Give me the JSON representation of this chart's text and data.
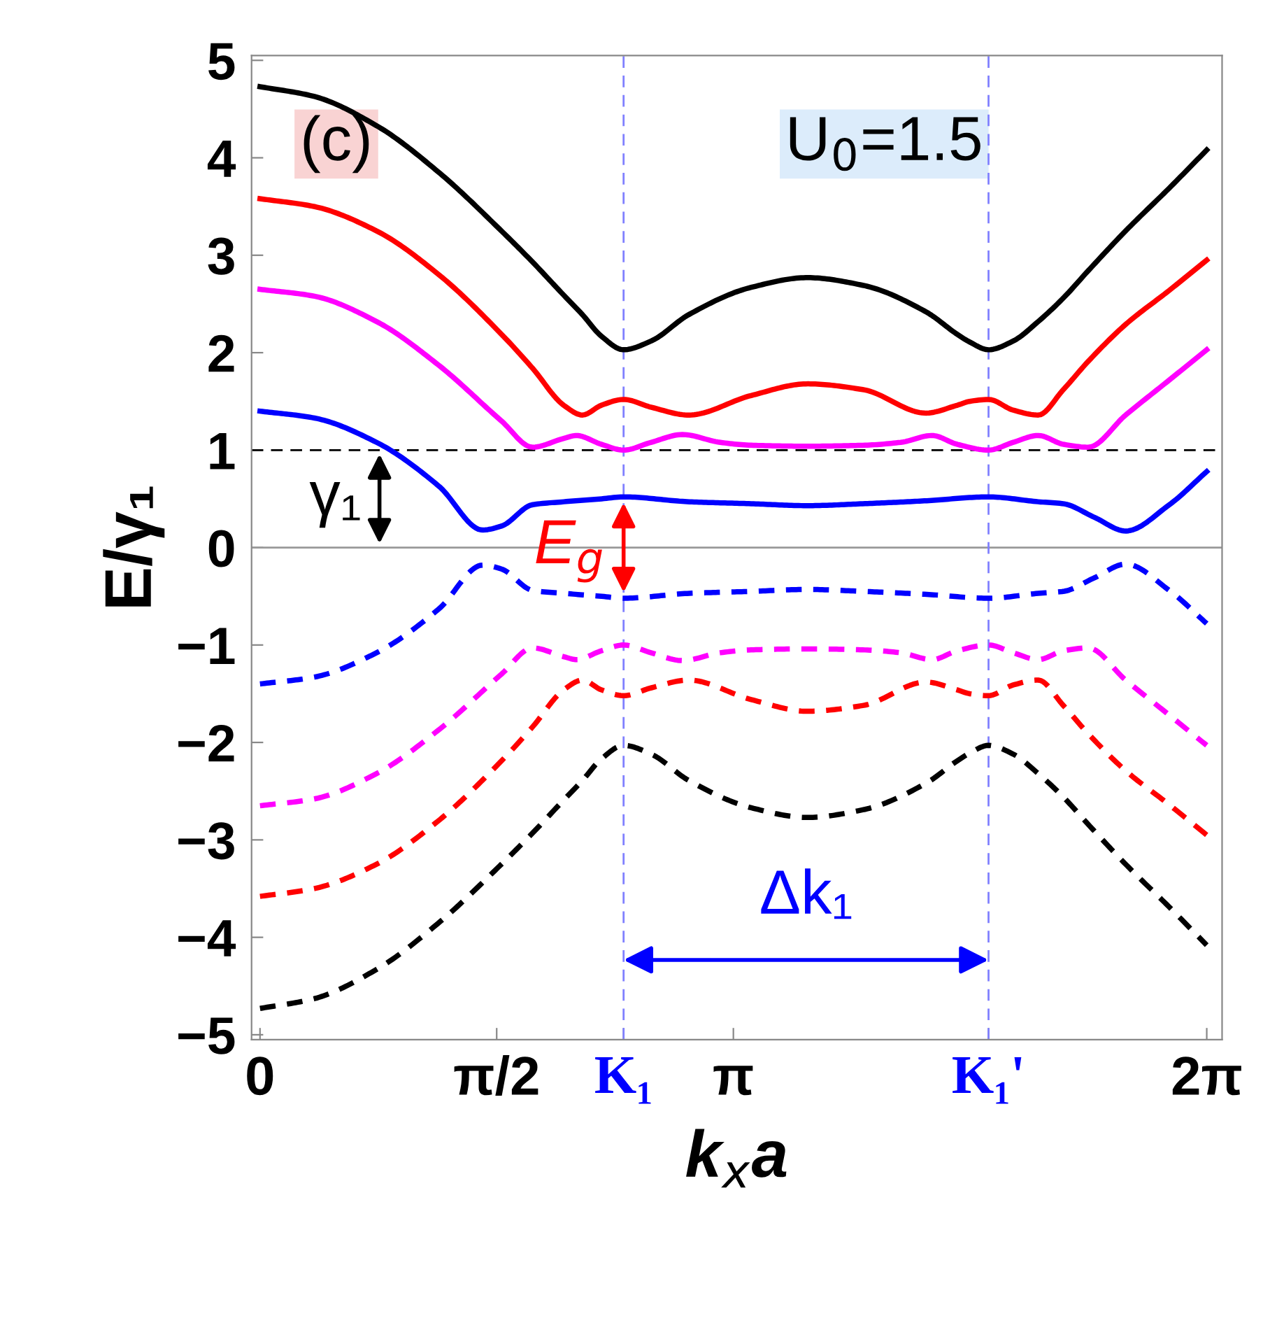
{
  "chart_data": {
    "type": "line",
    "xlabel": "k$_{x}$a",
    "ylabel": "E/γ₁",
    "xlim": [
      -0.056,
      6.385
    ],
    "ylim": [
      -5.05,
      5.05
    ],
    "xticks": [
      {
        "value": 0,
        "label": "0"
      },
      {
        "value": 1.5708,
        "label": "π/2"
      },
      {
        "value": 2.413,
        "label": "K₁"
      },
      {
        "value": 3.1416,
        "label": "π"
      },
      {
        "value": 4.835,
        "label": "K₁'"
      },
      {
        "value": 6.2832,
        "label": "2π"
      }
    ],
    "yticks": [
      {
        "value": -5,
        "label": "−5"
      },
      {
        "value": -4,
        "label": "−4"
      },
      {
        "value": -3,
        "label": "−3"
      },
      {
        "value": -2,
        "label": "−2"
      },
      {
        "value": -1,
        "label": "−1"
      },
      0,
      1,
      2,
      3,
      4,
      5
    ],
    "grid": false,
    "marker": "none",
    "series": [
      {
        "color": "#000000",
        "line_style": "solid",
        "x": [
          0,
          0.359,
          0.773,
          1.187,
          1.602,
          1.809,
          2.016,
          2.14,
          2.265,
          2.413,
          2.596,
          2.845,
          3.259,
          3.632,
          4.005,
          4.419,
          4.626,
          4.709,
          4.835,
          4.999,
          5.165,
          5.331,
          5.496,
          5.745,
          6.035,
          6.283
        ],
        "values": [
          4.73,
          4.63,
          4.33,
          3.85,
          3.25,
          2.93,
          2.59,
          2.39,
          2.17,
          2.03,
          2.12,
          2.39,
          2.67,
          2.77,
          2.69,
          2.42,
          2.19,
          2.11,
          2.03,
          2.12,
          2.32,
          2.56,
          2.84,
          3.25,
          3.69,
          4.08
        ]
      },
      {
        "color": "#ff0000",
        "line_style": "solid",
        "x": [
          0,
          0.359,
          0.773,
          1.187,
          1.602,
          1.809,
          2.016,
          2.14,
          2.265,
          2.413,
          2.596,
          2.845,
          3.259,
          3.632,
          4.005,
          4.419,
          4.626,
          4.709,
          4.835,
          4.999,
          5.165,
          5.331,
          5.496,
          5.745,
          6.035,
          6.283
        ],
        "values": [
          3.58,
          3.5,
          3.25,
          2.8,
          2.19,
          1.84,
          1.46,
          1.36,
          1.46,
          1.52,
          1.44,
          1.36,
          1.56,
          1.68,
          1.62,
          1.38,
          1.46,
          1.5,
          1.52,
          1.41,
          1.36,
          1.62,
          1.91,
          2.29,
          2.64,
          2.95
        ]
      },
      {
        "color": "#ff00ff",
        "line_style": "solid",
        "x": [
          0,
          0.359,
          0.773,
          1.187,
          1.602,
          1.809,
          2.016,
          2.099,
          2.265,
          2.413,
          2.596,
          2.803,
          3.052,
          3.259,
          3.632,
          4.005,
          4.253,
          4.46,
          4.626,
          4.835,
          4.999,
          5.165,
          5.331,
          5.496,
          5.745,
          6.035,
          6.283
        ],
        "values": [
          2.65,
          2.58,
          2.32,
          1.87,
          1.3,
          1.03,
          1.12,
          1.15,
          1.06,
          1.0,
          1.08,
          1.16,
          1.08,
          1.05,
          1.04,
          1.05,
          1.08,
          1.15,
          1.06,
          1.0,
          1.08,
          1.15,
          1.06,
          1.03,
          1.36,
          1.72,
          2.03
        ]
      },
      {
        "color": "#0000ff",
        "line_style": "solid",
        "x": [
          0,
          0.359,
          0.773,
          1.187,
          1.477,
          1.602,
          1.809,
          2.016,
          2.265,
          2.413,
          2.845,
          3.259,
          3.632,
          4.005,
          4.419,
          4.835,
          5.165,
          5.331,
          5.538,
          5.745,
          6.035,
          6.283
        ],
        "values": [
          1.4,
          1.33,
          1.08,
          0.63,
          0.18,
          0.22,
          0.44,
          0.47,
          0.5,
          0.52,
          0.47,
          0.45,
          0.43,
          0.45,
          0.48,
          0.52,
          0.47,
          0.45,
          0.31,
          0.17,
          0.44,
          0.78
        ]
      },
      {
        "color": "#000000",
        "line_style": "dashed",
        "x": [
          0,
          0.359,
          0.773,
          1.187,
          1.602,
          1.809,
          2.016,
          2.14,
          2.265,
          2.413,
          2.596,
          2.845,
          3.259,
          3.632,
          4.005,
          4.419,
          4.626,
          4.709,
          4.835,
          4.999,
          5.165,
          5.331,
          5.496,
          5.745,
          6.035,
          6.283
        ],
        "values": [
          -4.73,
          -4.63,
          -4.33,
          -3.85,
          -3.25,
          -2.93,
          -2.59,
          -2.39,
          -2.17,
          -2.03,
          -2.12,
          -2.39,
          -2.67,
          -2.77,
          -2.69,
          -2.42,
          -2.19,
          -2.11,
          -2.03,
          -2.12,
          -2.32,
          -2.56,
          -2.84,
          -3.25,
          -3.69,
          -4.08
        ]
      },
      {
        "color": "#ff0000",
        "line_style": "dashed",
        "x": [
          0,
          0.359,
          0.773,
          1.187,
          1.602,
          1.809,
          2.016,
          2.14,
          2.265,
          2.413,
          2.596,
          2.845,
          3.259,
          3.632,
          4.005,
          4.419,
          4.626,
          4.709,
          4.835,
          4.999,
          5.165,
          5.331,
          5.496,
          5.745,
          6.035,
          6.283
        ],
        "values": [
          -3.58,
          -3.5,
          -3.25,
          -2.8,
          -2.19,
          -1.84,
          -1.46,
          -1.36,
          -1.46,
          -1.52,
          -1.44,
          -1.36,
          -1.56,
          -1.68,
          -1.62,
          -1.38,
          -1.46,
          -1.5,
          -1.52,
          -1.41,
          -1.36,
          -1.62,
          -1.91,
          -2.29,
          -2.64,
          -2.95
        ]
      },
      {
        "color": "#ff00ff",
        "line_style": "dashed",
        "x": [
          0,
          0.359,
          0.773,
          1.187,
          1.602,
          1.809,
          2.016,
          2.099,
          2.265,
          2.413,
          2.596,
          2.803,
          3.052,
          3.259,
          3.632,
          4.005,
          4.253,
          4.46,
          4.626,
          4.835,
          4.999,
          5.165,
          5.331,
          5.496,
          5.745,
          6.035,
          6.283
        ],
        "values": [
          -2.65,
          -2.58,
          -2.32,
          -1.87,
          -1.3,
          -1.03,
          -1.12,
          -1.15,
          -1.06,
          -1.0,
          -1.08,
          -1.16,
          -1.08,
          -1.05,
          -1.04,
          -1.05,
          -1.08,
          -1.15,
          -1.06,
          -1.0,
          -1.08,
          -1.15,
          -1.06,
          -1.03,
          -1.36,
          -1.72,
          -2.03
        ]
      },
      {
        "color": "#0000ff",
        "line_style": "dashed",
        "x": [
          0,
          0.359,
          0.773,
          1.187,
          1.477,
          1.602,
          1.809,
          2.016,
          2.265,
          2.413,
          2.845,
          3.259,
          3.632,
          4.005,
          4.419,
          4.835,
          5.165,
          5.331,
          5.538,
          5.745,
          6.035,
          6.283
        ],
        "values": [
          -1.4,
          -1.33,
          -1.08,
          -0.63,
          -0.18,
          -0.22,
          -0.44,
          -0.47,
          -0.5,
          -0.52,
          -0.47,
          -0.45,
          -0.43,
          -0.45,
          -0.48,
          -0.52,
          -0.47,
          -0.45,
          -0.31,
          -0.17,
          -0.44,
          -0.78
        ]
      }
    ],
    "ref_lines": [
      {
        "axis": "y",
        "value": 1,
        "color": "#000000",
        "line_style": "dashed"
      },
      {
        "axis": "y",
        "value": 0,
        "color": "#999999",
        "line_style": "solid"
      },
      {
        "axis": "x",
        "value": 2.413,
        "color": "#8080ff",
        "line_style": "dashed"
      },
      {
        "axis": "x",
        "value": 4.835,
        "color": "#8080ff",
        "line_style": "dashed"
      }
    ],
    "annotations": [
      "(c)",
      "U$_{0}$=1.5",
      {
        "text": "γ₁",
        "x": 0.793,
        "y": 1
      },
      {
        "text": "E$_{g}$",
        "x": 2.413,
        "y": 0.5
      },
      "Δk₁"
    ]
  }
}
